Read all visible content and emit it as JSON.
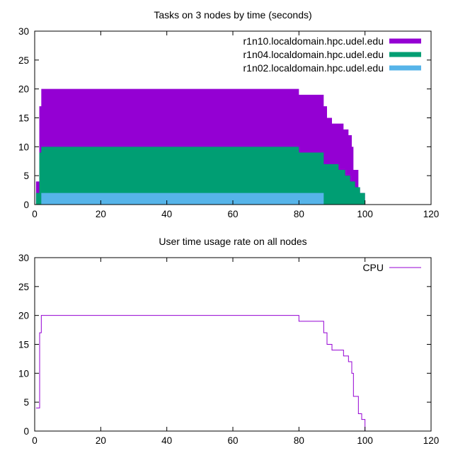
{
  "window": {
    "background": "#ffffff",
    "frame_color": "#000000",
    "text_color": "#000000"
  },
  "chart_data": [
    {
      "type": "area",
      "style": "stacked-step-area",
      "title": "Tasks on 3 nodes by time (seconds)",
      "xlabel": "",
      "ylabel": "",
      "xlim": [
        0,
        120
      ],
      "ylim": [
        0,
        30
      ],
      "x_ticks": [
        "0",
        "20",
        "40",
        "60",
        "80",
        "100",
        "120"
      ],
      "y_ticks": [
        "0",
        "5",
        "10",
        "15",
        "20",
        "25",
        "30"
      ],
      "grid": false,
      "legend_position": "top-right-inside",
      "legend_marker": "box",
      "series": [
        {
          "name": "r1n10.localdomain.hpc.udel.edu",
          "color": "#9400d3",
          "note": "cumulative top of stack (total tasks)",
          "steps": [
            [
              0.4,
              4
            ],
            [
              1.4,
              17
            ],
            [
              2,
              20
            ],
            [
              80,
              19
            ],
            [
              87.5,
              17
            ],
            [
              88.5,
              15
            ],
            [
              90,
              14
            ],
            [
              93.5,
              13
            ],
            [
              95,
              12
            ],
            [
              96,
              10
            ],
            [
              96.5,
              6
            ],
            [
              98,
              3
            ],
            [
              98.5,
              2
            ],
            [
              100,
              0
            ]
          ]
        },
        {
          "name": "r1n04.localdomain.hpc.udel.edu",
          "color": "#009e73",
          "note": "cumulative top of blue+green bands",
          "steps": [
            [
              0.4,
              2
            ],
            [
              1.4,
              9
            ],
            [
              2,
              10
            ],
            [
              80,
              9
            ],
            [
              87.5,
              7
            ],
            [
              92,
              6
            ],
            [
              94,
              5
            ],
            [
              95.5,
              4
            ],
            [
              97,
              3
            ],
            [
              98.5,
              2
            ],
            [
              100,
              0
            ]
          ]
        },
        {
          "name": "r1n02.localdomain.hpc.udel.edu",
          "color": "#56b4e9",
          "note": "bottom band, 2 tasks until t=87.5",
          "steps": [
            [
              2,
              2
            ],
            [
              87.5,
              0
            ]
          ]
        }
      ]
    },
    {
      "type": "line",
      "style": "step-line",
      "title": "User time usage rate on all nodes",
      "xlabel": "",
      "ylabel": "",
      "xlim": [
        0,
        120
      ],
      "ylim": [
        0,
        30
      ],
      "x_ticks": [
        "0",
        "20",
        "40",
        "60",
        "80",
        "100",
        "120"
      ],
      "y_ticks": [
        "0",
        "5",
        "10",
        "15",
        "20",
        "25",
        "30"
      ],
      "grid": false,
      "legend_position": "top-right-inside",
      "legend_marker": "line",
      "series": [
        {
          "name": "CPU",
          "color": "#9400d3",
          "steps": [
            [
              0.4,
              4
            ],
            [
              1.5,
              17
            ],
            [
              2,
              20
            ],
            [
              80,
              19
            ],
            [
              87.5,
              17
            ],
            [
              88.5,
              15
            ],
            [
              90,
              14
            ],
            [
              93.5,
              13
            ],
            [
              95,
              12
            ],
            [
              96,
              10
            ],
            [
              96.5,
              6
            ],
            [
              98,
              3
            ],
            [
              99,
              2
            ],
            [
              100,
              0
            ]
          ]
        }
      ]
    }
  ]
}
